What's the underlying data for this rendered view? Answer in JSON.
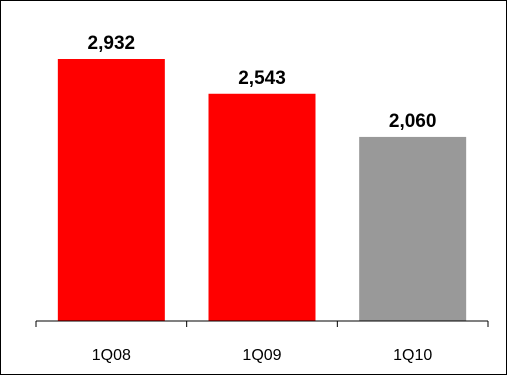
{
  "chart_data": {
    "type": "bar",
    "title": "",
    "xlabel": "",
    "ylabel": "",
    "categories": [
      "1Q08",
      "1Q09",
      "1Q10"
    ],
    "values": [
      2932,
      2543,
      2060
    ],
    "value_labels": [
      "2,932",
      "2,543",
      "2,060"
    ],
    "colors": [
      "#ff0000",
      "#ff0000",
      "#999999"
    ],
    "ylim": [
      0,
      2932
    ],
    "grid": false,
    "legend": "none"
  }
}
